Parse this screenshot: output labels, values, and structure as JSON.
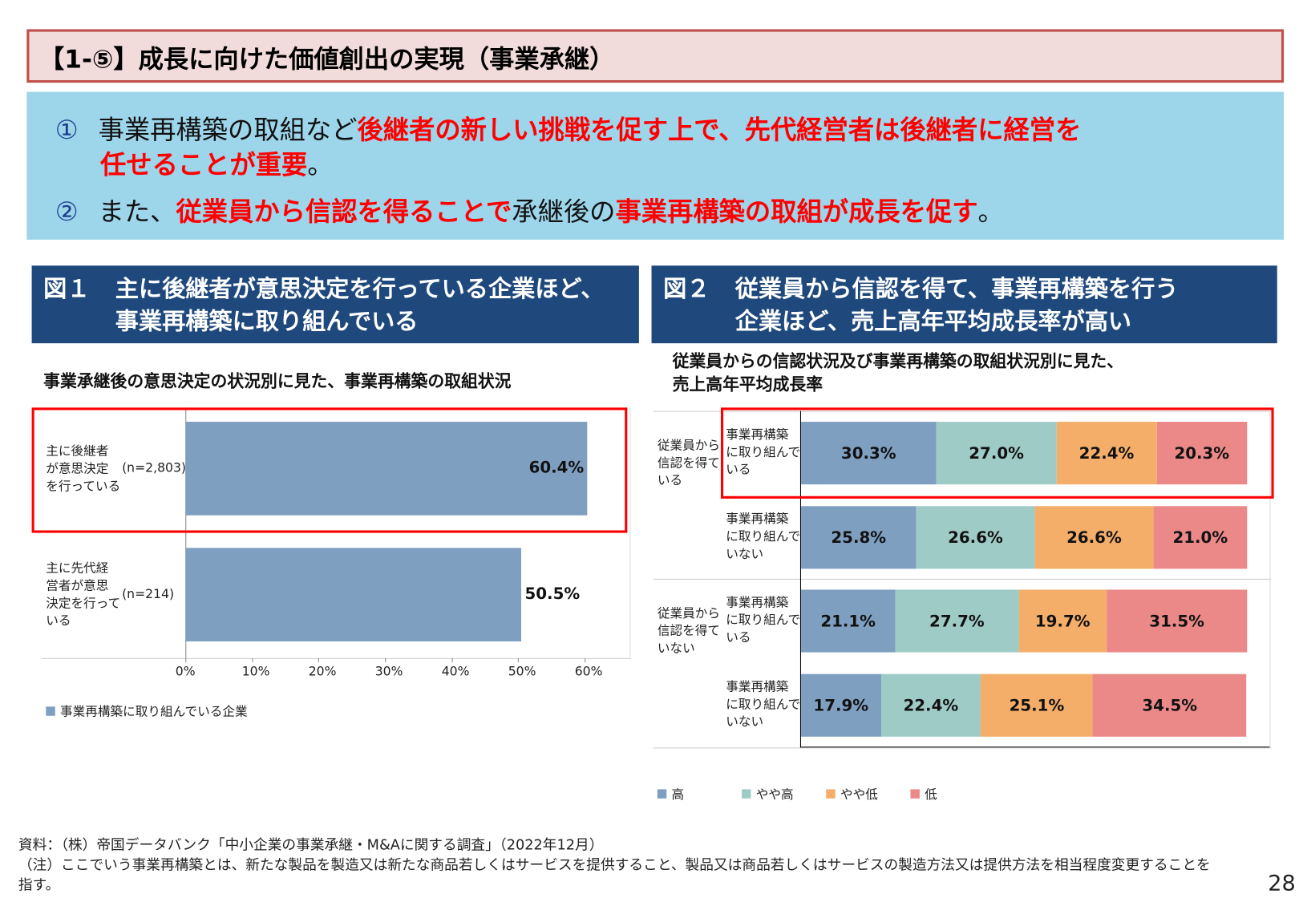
{
  "title": "【1-⑤】成長に向けた価値創出の実現（事業承継）",
  "summary": {
    "item1": {
      "num": "①",
      "a": "事業再構築の取組など",
      "b": "後継者の新しい挑戦を促す上で、先代経営者は後継者に経営を",
      "c": "任せることが重要",
      "d": "。"
    },
    "item2": {
      "num": "②",
      "a": "また、",
      "b": "従業員から信認を得ることで",
      "c": "承継後の",
      "d": "事業再構築の取組が成長を促す",
      "e": "。"
    }
  },
  "fig1": {
    "label": "図１",
    "heading_line1": "主に後継者が意思決定を行っている企業ほど、",
    "heading_line2": "事業再構築に取り組んでいる",
    "subtitle": "事業承継後の意思決定の状況別に見た、事業再構築の取組状況",
    "chart_data": {
      "type": "bar",
      "orientation": "horizontal",
      "categories": [
        "主に後継者が意思決定を行っている",
        "主に先代経営者が意思決定を行っている"
      ],
      "category_lines": [
        [
          "主に後継者",
          "が意思決定",
          "を行っている"
        ],
        [
          "主に先代経",
          "営者が意思",
          "決定を行って",
          "いる"
        ]
      ],
      "n_labels": [
        "(n=2,803)",
        "(n=214)"
      ],
      "values": [
        60.4,
        50.5
      ],
      "value_labels": [
        "60.4%",
        "50.5%"
      ],
      "xlim": [
        0,
        60
      ],
      "xticks": [
        "0%",
        "10%",
        "20%",
        "30%",
        "40%",
        "50%",
        "60%"
      ],
      "series_name": "事業再構築に取り組んでいる企業",
      "color": "#7f9fc1",
      "highlighted": "主に後継者が意思決定を行っている"
    }
  },
  "fig2": {
    "label": "図２",
    "heading_line1": "従業員から信認を得て、事業再構築を行う",
    "heading_line2": "企業ほど、売上高年平均成長率が高い",
    "subtitle_line1": "従業員からの信認状況及び事業再構築の取組状況別に見た、",
    "subtitle_line2": "売上高年平均成長率",
    "chart_data": {
      "type": "bar",
      "stacking": "100%",
      "orientation": "horizontal",
      "groups": [
        [
          "従業員から",
          "信認を得て",
          "いる"
        ],
        [
          "従業員から",
          "信認を得て",
          "いない"
        ]
      ],
      "rows": [
        [
          "事業再構築",
          "に取り組んで",
          "いる"
        ],
        [
          "事業再構築",
          "に取り組んで",
          "いない"
        ],
        [
          "事業再構築",
          "に取り組んで",
          "いる"
        ],
        [
          "事業再構築",
          "に取り組んで",
          "いない"
        ]
      ],
      "series": [
        {
          "name": "高",
          "color": "#7f9fc1",
          "values": [
            30.3,
            25.8,
            21.1,
            17.9
          ],
          "labels": [
            "30.3%",
            "25.8%",
            "21.1%",
            "17.9%"
          ]
        },
        {
          "name": "やや高",
          "color": "#9fcbc7",
          "values": [
            27.0,
            26.6,
            27.7,
            22.4
          ],
          "labels": [
            "27.0%",
            "26.6%",
            "27.7%",
            "22.4%"
          ]
        },
        {
          "name": "やや低",
          "color": "#f4ae6a",
          "values": [
            22.4,
            26.6,
            19.7,
            25.1
          ],
          "labels": [
            "22.4%",
            "26.6%",
            "19.7%",
            "25.1%"
          ]
        },
        {
          "name": "低",
          "color": "#eb8888",
          "values": [
            20.3,
            21.0,
            31.5,
            34.5
          ],
          "labels": [
            "20.3%",
            "21.0%",
            "31.5%",
            "34.5%"
          ]
        }
      ],
      "legend_position": "bottom",
      "highlighted_row": 0
    }
  },
  "footer": {
    "source": "資料：（株）帝国データバンク「中小企業の事業承継・M&Aに関する調査」（2022年12月）",
    "note_line1": "（注）ここでいう事業再構築とは、新たな製品を製造又は新たな商品若しくはサービスを提供すること、製品又は商品若しくはサービスの製造方法又は提供方法を相当程度変更することを",
    "note_line2": "指す。",
    "page": "28"
  }
}
